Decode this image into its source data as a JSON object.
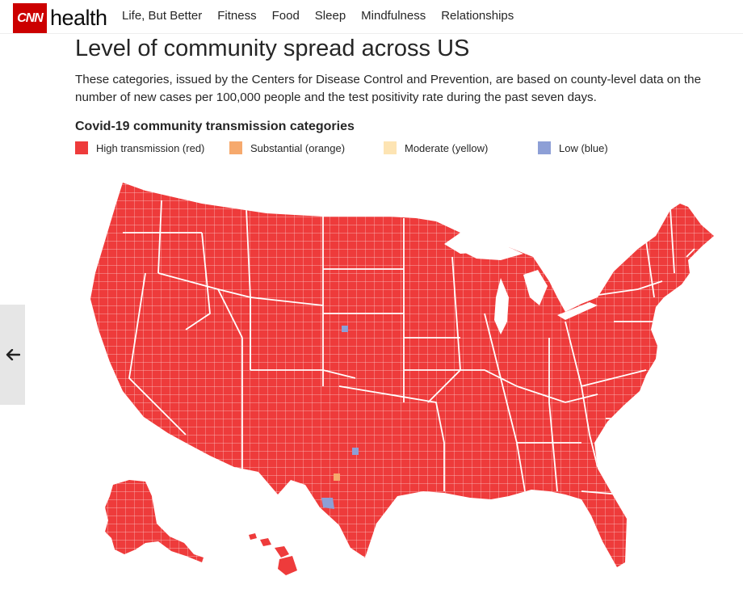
{
  "brand": {
    "logo_mark": "CNN",
    "section": "health"
  },
  "nav": {
    "items": [
      {
        "label": "Life, But Better",
        "name": "nav-life-but-better"
      },
      {
        "label": "Fitness",
        "name": "nav-fitness"
      },
      {
        "label": "Food",
        "name": "nav-food"
      },
      {
        "label": "Sleep",
        "name": "nav-sleep"
      },
      {
        "label": "Mindfulness",
        "name": "nav-mindfulness"
      },
      {
        "label": "Relationships",
        "name": "nav-relationships"
      }
    ]
  },
  "article": {
    "headline": "Level of community spread across US",
    "description": "These categories, issued by the Centers for Disease Control and Prevention, are based on county-level data on the number of new cases per 100,000 people and the test positivity rate during the past seven days."
  },
  "legend": {
    "title": "Covid-19 community transmission categories",
    "items": [
      {
        "label": "High transmission (red)",
        "color": "#ee3b3b"
      },
      {
        "label": "Substantial (orange)",
        "color": "#f6a96d"
      },
      {
        "label": "Moderate (yellow)",
        "color": "#fde4b3"
      },
      {
        "label": "Low (blue)",
        "color": "#8d9fd6"
      }
    ]
  },
  "map": {
    "fill_high": "#ee3b3b",
    "border_color": "#ffffff",
    "low_color": "#8d9fd6",
    "substantial_color": "#f6a96d"
  },
  "icons": {
    "back": "arrow-left-icon"
  }
}
